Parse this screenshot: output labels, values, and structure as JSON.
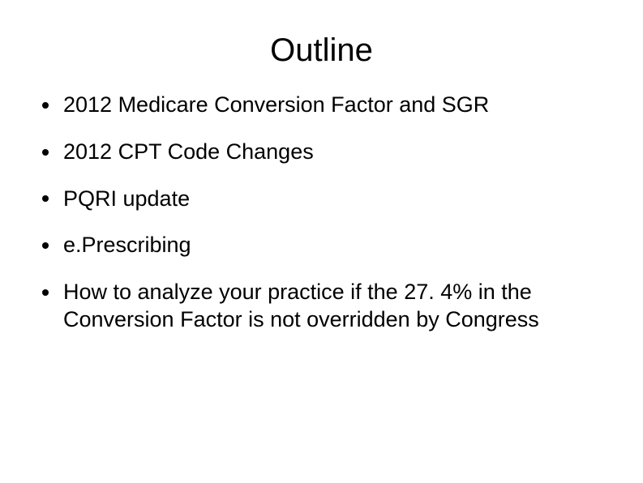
{
  "slide": {
    "title": "Outline",
    "title_fontsize": 40,
    "body_fontsize": 27,
    "text_color": "#000000",
    "background_color": "#ffffff",
    "bullet_glyph_color": "#000000",
    "bullets": [
      "2012 Medicare Conversion Factor and SGR",
      "2012 CPT Code Changes",
      "PQRI update",
      "e.Prescribing",
      "How to analyze your practice if the 27. 4% in the Conversion Factor is not overridden by Congress"
    ]
  }
}
